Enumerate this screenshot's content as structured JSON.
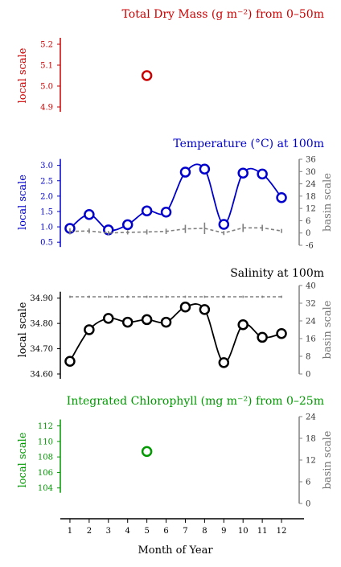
{
  "chart_data": [
    {
      "type": "scatter",
      "title": "Total Dry Mass (g m⁻²) from 0–50m",
      "color": "#cc0000",
      "ylabel_left": "local scale",
      "left_ylim": [
        4.85,
        5.25
      ],
      "left_ticks": [
        4.9,
        5.0,
        5.1,
        5.2
      ],
      "left_tick_labels": [
        "4.9",
        "5.0",
        "5.1",
        "5.2"
      ],
      "series": [
        {
          "role": "local",
          "points": [
            {
              "x": 5,
              "y": 5.05
            }
          ]
        }
      ]
    },
    {
      "type": "line",
      "title": "Temperature (°C) at 100m",
      "color": "#0000cc",
      "ylabel_left": "local scale",
      "ylabel_right": "basin scale",
      "left_ylim": [
        0.4,
        3.2
      ],
      "left_ticks": [
        0.5,
        1.0,
        1.5,
        2.0,
        2.5,
        3.0
      ],
      "left_tick_labels": [
        "0.5",
        "1.0",
        "1.5",
        "2.0",
        "2.5",
        "3.0"
      ],
      "right_ylim": [
        -6,
        36
      ],
      "right_ticks": [
        -6,
        0,
        6,
        12,
        18,
        24,
        30,
        36
      ],
      "right_tick_labels": [
        "-6",
        "0",
        "6",
        "12",
        "18",
        "24",
        "30",
        "36"
      ],
      "series": [
        {
          "role": "local",
          "x": [
            1,
            2,
            3,
            4,
            5,
            6,
            7,
            8,
            9,
            10,
            11,
            12
          ],
          "y": [
            0.95,
            1.4,
            0.9,
            1.07,
            1.52,
            1.48,
            2.78,
            2.88,
            1.08,
            2.75,
            2.72,
            1.95
          ]
        },
        {
          "role": "basin",
          "x": [
            1,
            2,
            3,
            4,
            5,
            6,
            7,
            8,
            9,
            10,
            11,
            12
          ],
          "y": [
            0.8,
            1.0,
            0.0,
            0.3,
            0.5,
            0.8,
            2.0,
            2.3,
            0.0,
            2.5,
            2.5,
            1.0
          ],
          "err": [
            1.5,
            1.2,
            1.0,
            1.0,
            1.2,
            1.3,
            2.0,
            2.8,
            1.0,
            2.0,
            1.5,
            1.0
          ]
        }
      ]
    },
    {
      "type": "line",
      "title": "Salinity at 100m",
      "color": "#000000",
      "ylabel_left": "local scale",
      "ylabel_right": "basin scale",
      "left_ylim": [
        34.6,
        34.95
      ],
      "left_ticks": [
        34.6,
        34.7,
        34.8,
        34.9
      ],
      "left_tick_labels": [
        "34.60",
        "34.70",
        "34.80",
        "34.90"
      ],
      "right_ylim": [
        0,
        40
      ],
      "right_ticks": [
        0,
        8,
        16,
        24,
        32,
        40
      ],
      "right_tick_labels": [
        "0",
        "8",
        "16",
        "24",
        "32",
        "40"
      ],
      "series": [
        {
          "role": "local",
          "x": [
            1,
            2,
            3,
            4,
            5,
            6,
            7,
            8,
            9,
            10,
            11,
            12
          ],
          "y": [
            34.65,
            34.775,
            34.82,
            34.805,
            34.815,
            34.805,
            34.865,
            34.855,
            34.645,
            34.795,
            34.745,
            34.76
          ]
        },
        {
          "role": "basin",
          "x": [
            1,
            2,
            3,
            4,
            5,
            6,
            7,
            8,
            9,
            10,
            11,
            12
          ],
          "y": [
            34.9,
            34.9,
            34.9,
            34.9,
            34.9,
            34.9,
            34.91,
            34.91,
            34.9,
            34.9,
            34.9,
            34.9
          ],
          "err": [
            0.5,
            0.5,
            0.5,
            0.5,
            0.5,
            0.5,
            0.5,
            0.5,
            0.5,
            0.5,
            0.5,
            0.5
          ]
        }
      ]
    },
    {
      "type": "scatter",
      "title": "Integrated Chlorophyll (mg m⁻²) from 0–25m",
      "color": "#009900",
      "ylabel_left": "local scale",
      "ylabel_right": "basin scale",
      "left_ylim": [
        102,
        113.2
      ],
      "left_ticks": [
        104,
        106,
        108,
        110,
        112
      ],
      "left_tick_labels": [
        "104",
        "106",
        "108",
        "110",
        "112"
      ],
      "right_ylim": [
        0,
        24
      ],
      "right_ticks": [
        0,
        6,
        12,
        18,
        24
      ],
      "right_tick_labels": [
        "0",
        "6",
        "12",
        "18",
        "24"
      ],
      "series": [
        {
          "role": "local",
          "points": [
            {
              "x": 5,
              "y": 108.7
            }
          ]
        }
      ]
    }
  ],
  "xaxis": {
    "label": "Month of Year",
    "ticks": [
      1,
      2,
      3,
      4,
      5,
      6,
      7,
      8,
      9,
      10,
      11,
      12
    ],
    "tick_labels": [
      "1",
      "2",
      "3",
      "4",
      "5",
      "6",
      "7",
      "8",
      "9",
      "10",
      "11",
      "12"
    ],
    "xlim": [
      0.5,
      12.5
    ]
  },
  "colors": {
    "basin": "#808080"
  }
}
